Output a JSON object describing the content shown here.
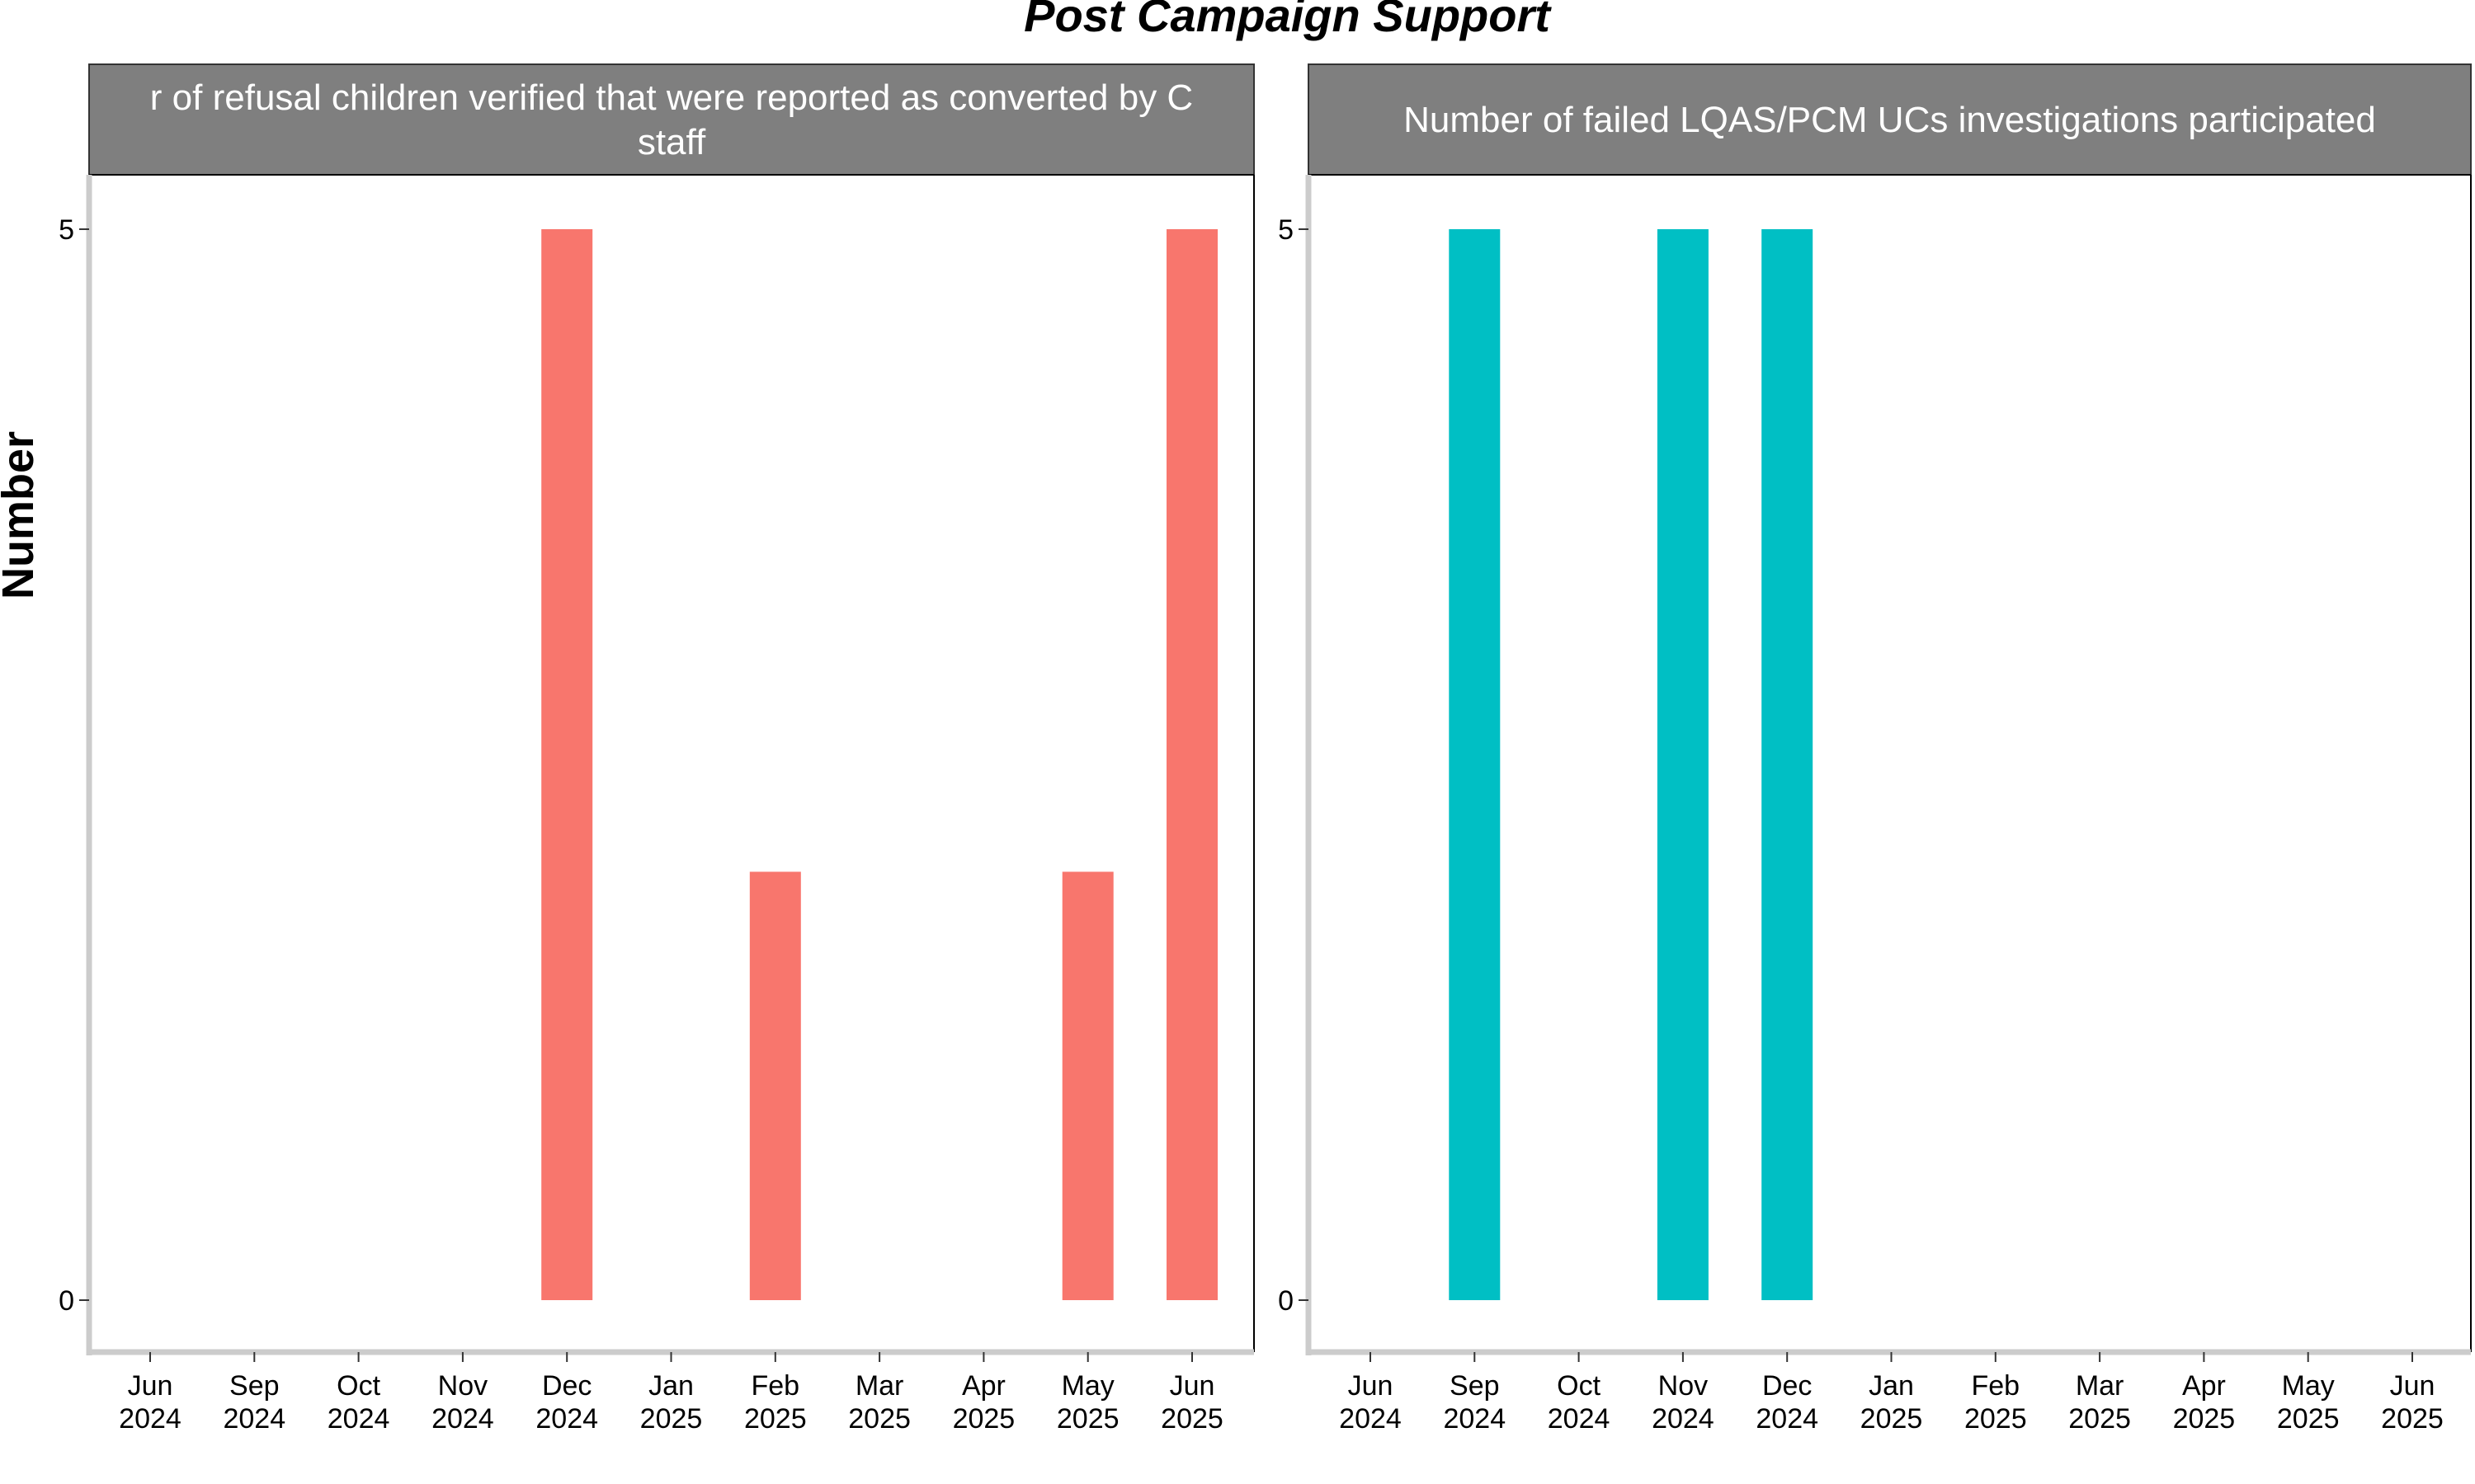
{
  "chart_data": {
    "title": "Post Campaign Support",
    "ylabel": "Number",
    "type": "bar",
    "ylim": [
      0,
      5
    ],
    "yticks": [
      0,
      5
    ],
    "grid": false,
    "colors": {
      "left": "#F8766D",
      "right": "#00BFC4",
      "strip": "#7f7f7f"
    },
    "panels": [
      {
        "strip_lines": [
          "r of refusal children verified that were reported as converted by C",
          "staff"
        ],
        "x_ticks": [
          {
            "m": "Jun",
            "y": "2024"
          },
          {
            "m": "Sep",
            "y": "2024"
          },
          {
            "m": "Oct",
            "y": "2024"
          },
          {
            "m": "Nov",
            "y": "2024"
          },
          {
            "m": "Dec",
            "y": "2024"
          },
          {
            "m": "Jan",
            "y": "2025"
          },
          {
            "m": "Feb",
            "y": "2025"
          },
          {
            "m": "Mar",
            "y": "2025"
          },
          {
            "m": "Apr",
            "y": "2025"
          },
          {
            "m": "May",
            "y": "2025"
          },
          {
            "m": "Jun",
            "y": "2025"
          }
        ],
        "values": [
          0,
          0,
          0,
          0,
          5,
          0,
          2,
          0,
          0,
          2,
          5
        ]
      },
      {
        "strip_lines": [
          "Number of failed LQAS/PCM UCs investigations participated"
        ],
        "x_ticks": [
          {
            "m": "Jun",
            "y": "2024"
          },
          {
            "m": "Sep",
            "y": "2024"
          },
          {
            "m": "Oct",
            "y": "2024"
          },
          {
            "m": "Nov",
            "y": "2024"
          },
          {
            "m": "Dec",
            "y": "2024"
          },
          {
            "m": "Jan",
            "y": "2025"
          },
          {
            "m": "Feb",
            "y": "2025"
          },
          {
            "m": "Mar",
            "y": "2025"
          },
          {
            "m": "Apr",
            "y": "2025"
          },
          {
            "m": "May",
            "y": "2025"
          },
          {
            "m": "Jun",
            "y": "2025"
          }
        ],
        "values": [
          0,
          5,
          0,
          5,
          5,
          0,
          0,
          0,
          0,
          0,
          0
        ]
      }
    ]
  }
}
